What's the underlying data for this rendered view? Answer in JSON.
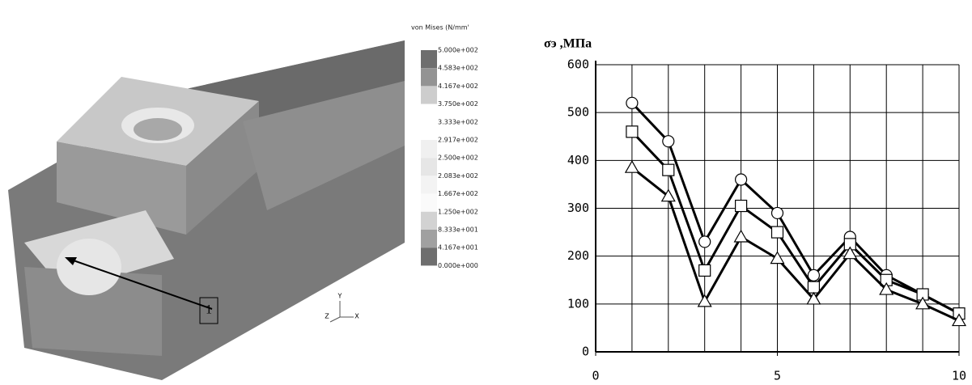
{
  "fea": {
    "legend": {
      "title": "von Mises (N/mm'",
      "labels": [
        "5.000e+002",
        "4.583e+002",
        "4.167e+002",
        "3.750e+002",
        "3.333e+002",
        "2.917e+002",
        "2.500e+002",
        "2.083e+002",
        "1.667e+002",
        "1.250e+002",
        "8.333e+001",
        "4.167e+001",
        "0.000e+000"
      ],
      "colors": [
        "#6e6e6e",
        "#939393",
        "#cdcdcd",
        "#ffffff",
        "#ffffff",
        "#f0f0f0",
        "#e6e6e6",
        "#f3f3f3",
        "#fafafa",
        "#d2d2d2",
        "#a0a0a0",
        "#6e6e6e"
      ]
    },
    "callout": "1",
    "axes": [
      "Y",
      "Z",
      "X"
    ]
  },
  "chart_data": {
    "type": "line",
    "title": "σэ ,МПа",
    "x": [
      1,
      2,
      3,
      4,
      5,
      6,
      7,
      8,
      9,
      10
    ],
    "series": [
      {
        "color": "#000000",
        "marker": "circle",
        "values": [
          520,
          440,
          230,
          360,
          290,
          160,
          240,
          160,
          120,
          80
        ]
      },
      {
        "color": "#000000",
        "marker": "square",
        "values": [
          460,
          380,
          170,
          305,
          250,
          135,
          225,
          150,
          120,
          80
        ]
      },
      {
        "color": "#000000",
        "marker": "triangle",
        "values": [
          385,
          325,
          105,
          240,
          195,
          110,
          205,
          130,
          100,
          65
        ]
      }
    ],
    "xlim": [
      0,
      10
    ],
    "xticks": [
      0,
      5,
      10
    ],
    "ylim": [
      0,
      600
    ],
    "yticks": [
      0,
      100,
      200,
      300,
      400,
      500,
      600
    ],
    "grid": true
  }
}
